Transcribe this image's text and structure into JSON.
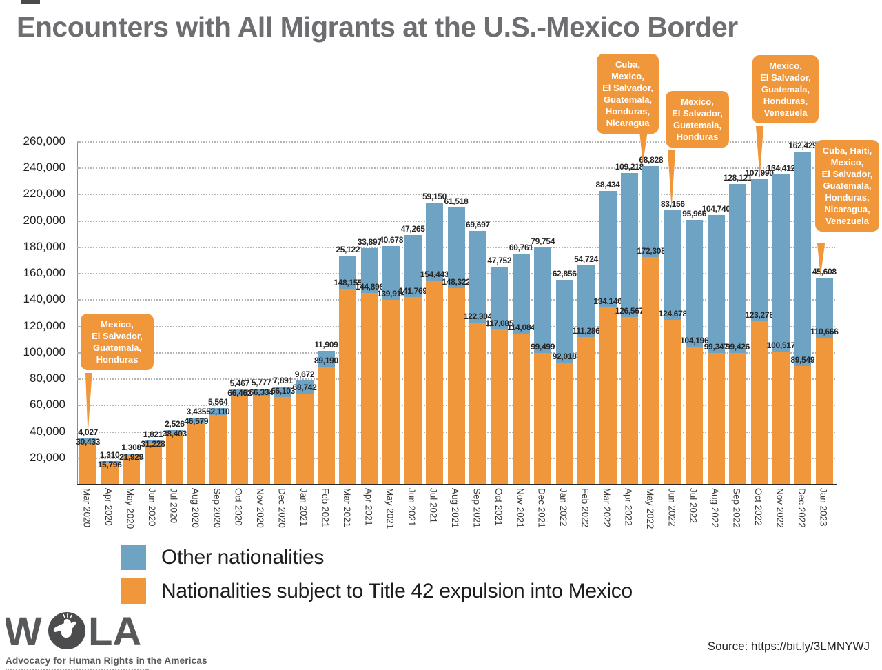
{
  "title": "Encounters with All Migrants at the U.S.-Mexico Border",
  "source_text": "Source: https://bit.ly/3LMNYWJ",
  "logo": {
    "word_left": "W",
    "word_right": "LA",
    "tagline": "Advocacy for Human Rights in the Americas"
  },
  "legend": {
    "items": [
      {
        "label": "Other nationalities",
        "color": "#6fa3c4"
      },
      {
        "label": "Nationalities subject to Title 42 expulsion into Mexico",
        "color": "#f0973b"
      }
    ]
  },
  "callouts": [
    {
      "target": "Mar 2020",
      "text": "Mexico,\nEl Salvador,\nGuatemala,\nHonduras"
    },
    {
      "target": "May 2022",
      "text": "Cuba,\nMexico,\nEl Salvador,\nGuatemala,\nHonduras,\nNicaragua"
    },
    {
      "target": "Jun 2022",
      "text": "Mexico,\nEl Salvador,\nGuatemala,\nHonduras"
    },
    {
      "target": "Oct 2022",
      "text": "Mexico,\nEl Salvador,\nGuatemala,\nHonduras,\nVenezuela"
    },
    {
      "target": "Jan 2023",
      "text": "Cuba, Haiti,\nMexico,\nEl Salvador,\nGuatemala,\nHonduras,\nNicaragua,\nVenezuela"
    }
  ],
  "chart_data": {
    "type": "bar",
    "stacked": true,
    "title": "Encounters with All Migrants at the U.S.-Mexico Border",
    "xlabel": "",
    "ylabel": "",
    "ylim": [
      0,
      260000
    ],
    "yticks": [
      20000,
      40000,
      60000,
      80000,
      100000,
      120000,
      140000,
      160000,
      180000,
      200000,
      220000,
      240000,
      260000
    ],
    "grid": "horizontal-dotted",
    "legend_position": "bottom",
    "categories": [
      "Mar 2020",
      "Apr 2020",
      "May 2020",
      "Jun 2020",
      "Jul 2020",
      "Aug 2020",
      "Sep 2020",
      "Oct 2020",
      "Nov 2020",
      "Dec 2020",
      "Jan 2021",
      "Feb 2021",
      "Mar 2021",
      "Apr 2021",
      "May 2021",
      "Jun 2021",
      "Jul 2021",
      "Aug 2021",
      "Sep 2021",
      "Oct 2021",
      "Nov 2021",
      "Dec 2021",
      "Jan 2022",
      "Feb 2022",
      "Mar 2022",
      "Apr 2022",
      "May 2022",
      "Jun 2022",
      "Jul 2022",
      "Aug 2022",
      "Sep 2022",
      "Oct 2022",
      "Nov 2022",
      "Dec 2022",
      "Jan 2023"
    ],
    "series": [
      {
        "name": "Nationalities subject to Title 42 expulsion into Mexico",
        "color": "#f0973b",
        "values": [
          30433,
          15796,
          21929,
          31228,
          38403,
          46579,
          52110,
          66462,
          66334,
          66103,
          68742,
          89190,
          148155,
          144898,
          139914,
          141769,
          154443,
          148322,
          122304,
          117085,
          114084,
          99499,
          92018,
          111286,
          134140,
          126567,
          172308,
          124678,
          104196,
          99347,
          99426,
          123278,
          100517,
          89549,
          110666
        ]
      },
      {
        "name": "Other nationalities",
        "color": "#6fa3c4",
        "values": [
          4027,
          1310,
          1308,
          1821,
          2526,
          3435,
          5564,
          5467,
          5777,
          7891,
          9672,
          11909,
          25122,
          33897,
          40678,
          47265,
          59150,
          61518,
          69697,
          47752,
          60761,
          79754,
          62856,
          54724,
          88434,
          109218,
          68828,
          83156,
          95966,
          104740,
          128121,
          107990,
          134412,
          162429,
          45608
        ]
      }
    ]
  }
}
